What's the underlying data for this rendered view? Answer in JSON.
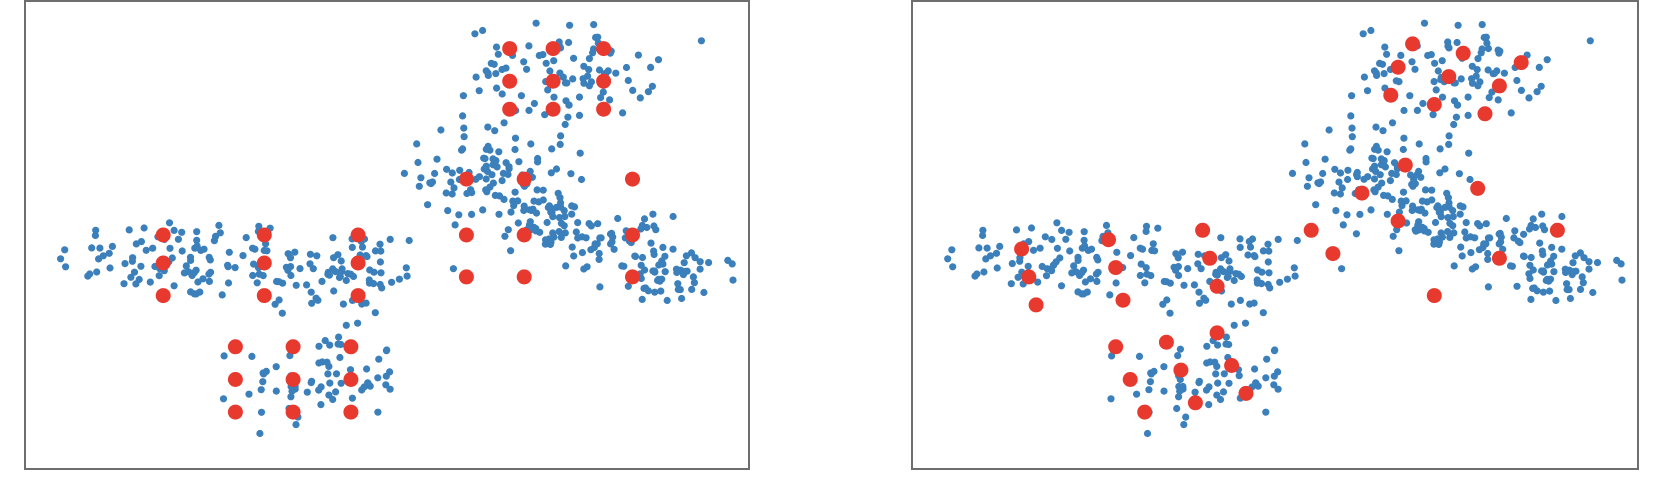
{
  "colors": {
    "points": "#3b7fbb",
    "centers": "#e8392f",
    "frame": "#6e6e6e"
  },
  "chart_data": [
    {
      "type": "scatter",
      "title": "",
      "xlabel": "",
      "ylabel": "",
      "xlim": [
        0,
        1
      ],
      "ylim": [
        0,
        1
      ],
      "grid": false,
      "legend": "none",
      "ticks": false,
      "clusters": [
        {
          "cx": 0.21,
          "cy": 0.45,
          "sx": 0.085,
          "sy": 0.045,
          "n": 95
        },
        {
          "cx": 0.43,
          "cy": 0.42,
          "sx": 0.07,
          "sy": 0.05,
          "n": 80
        },
        {
          "cx": 0.41,
          "cy": 0.19,
          "sx": 0.055,
          "sy": 0.05,
          "n": 70
        },
        {
          "cx": 0.65,
          "cy": 0.63,
          "sx": 0.05,
          "sy": 0.055,
          "n": 110
        },
        {
          "cx": 0.72,
          "cy": 0.52,
          "sx": 0.03,
          "sy": 0.03,
          "n": 45
        },
        {
          "cx": 0.81,
          "cy": 0.49,
          "sx": 0.04,
          "sy": 0.025,
          "n": 45
        },
        {
          "cx": 0.9,
          "cy": 0.41,
          "sx": 0.045,
          "sy": 0.03,
          "n": 55
        },
        {
          "cx": 0.74,
          "cy": 0.85,
          "sx": 0.065,
          "sy": 0.05,
          "n": 95
        }
      ],
      "centers": [
        {
          "x": 0.19,
          "y": 0.5
        },
        {
          "x": 0.19,
          "y": 0.44
        },
        {
          "x": 0.19,
          "y": 0.37
        },
        {
          "x": 0.33,
          "y": 0.5
        },
        {
          "x": 0.33,
          "y": 0.44
        },
        {
          "x": 0.33,
          "y": 0.37
        },
        {
          "x": 0.46,
          "y": 0.5
        },
        {
          "x": 0.46,
          "y": 0.44
        },
        {
          "x": 0.46,
          "y": 0.37
        },
        {
          "x": 0.29,
          "y": 0.26
        },
        {
          "x": 0.29,
          "y": 0.19
        },
        {
          "x": 0.29,
          "y": 0.12
        },
        {
          "x": 0.37,
          "y": 0.26
        },
        {
          "x": 0.37,
          "y": 0.19
        },
        {
          "x": 0.37,
          "y": 0.12
        },
        {
          "x": 0.45,
          "y": 0.26
        },
        {
          "x": 0.45,
          "y": 0.19
        },
        {
          "x": 0.45,
          "y": 0.12
        },
        {
          "x": 0.61,
          "y": 0.62
        },
        {
          "x": 0.61,
          "y": 0.5
        },
        {
          "x": 0.61,
          "y": 0.41
        },
        {
          "x": 0.69,
          "y": 0.62
        },
        {
          "x": 0.69,
          "y": 0.5
        },
        {
          "x": 0.69,
          "y": 0.41
        },
        {
          "x": 0.84,
          "y": 0.62
        },
        {
          "x": 0.84,
          "y": 0.5
        },
        {
          "x": 0.84,
          "y": 0.41
        },
        {
          "x": 0.67,
          "y": 0.9
        },
        {
          "x": 0.67,
          "y": 0.83
        },
        {
          "x": 0.67,
          "y": 0.77
        },
        {
          "x": 0.73,
          "y": 0.9
        },
        {
          "x": 0.73,
          "y": 0.83
        },
        {
          "x": 0.73,
          "y": 0.77
        },
        {
          "x": 0.8,
          "y": 0.9
        },
        {
          "x": 0.8,
          "y": 0.83
        },
        {
          "x": 0.8,
          "y": 0.77
        }
      ]
    },
    {
      "type": "scatter",
      "title": "",
      "xlabel": "",
      "ylabel": "",
      "xlim": [
        0,
        1
      ],
      "ylim": [
        0,
        1
      ],
      "grid": false,
      "legend": "none",
      "ticks": false,
      "clusters": [
        {
          "cx": 0.21,
          "cy": 0.45,
          "sx": 0.085,
          "sy": 0.045,
          "n": 95
        },
        {
          "cx": 0.43,
          "cy": 0.42,
          "sx": 0.07,
          "sy": 0.05,
          "n": 80
        },
        {
          "cx": 0.41,
          "cy": 0.19,
          "sx": 0.055,
          "sy": 0.05,
          "n": 70
        },
        {
          "cx": 0.65,
          "cy": 0.63,
          "sx": 0.05,
          "sy": 0.055,
          "n": 110
        },
        {
          "cx": 0.72,
          "cy": 0.52,
          "sx": 0.03,
          "sy": 0.03,
          "n": 45
        },
        {
          "cx": 0.81,
          "cy": 0.49,
          "sx": 0.04,
          "sy": 0.025,
          "n": 45
        },
        {
          "cx": 0.9,
          "cy": 0.41,
          "sx": 0.045,
          "sy": 0.03,
          "n": 55
        },
        {
          "cx": 0.74,
          "cy": 0.85,
          "sx": 0.065,
          "sy": 0.05,
          "n": 95
        }
      ],
      "centers": [
        {
          "x": 0.15,
          "y": 0.47
        },
        {
          "x": 0.16,
          "y": 0.41
        },
        {
          "x": 0.17,
          "y": 0.35
        },
        {
          "x": 0.27,
          "y": 0.49
        },
        {
          "x": 0.28,
          "y": 0.43
        },
        {
          "x": 0.29,
          "y": 0.36
        },
        {
          "x": 0.4,
          "y": 0.51
        },
        {
          "x": 0.41,
          "y": 0.45
        },
        {
          "x": 0.42,
          "y": 0.39
        },
        {
          "x": 0.28,
          "y": 0.26
        },
        {
          "x": 0.3,
          "y": 0.19
        },
        {
          "x": 0.32,
          "y": 0.12
        },
        {
          "x": 0.35,
          "y": 0.27
        },
        {
          "x": 0.37,
          "y": 0.21
        },
        {
          "x": 0.39,
          "y": 0.14
        },
        {
          "x": 0.42,
          "y": 0.29
        },
        {
          "x": 0.44,
          "y": 0.22
        },
        {
          "x": 0.46,
          "y": 0.16
        },
        {
          "x": 0.55,
          "y": 0.51
        },
        {
          "x": 0.58,
          "y": 0.46
        },
        {
          "x": 0.62,
          "y": 0.59
        },
        {
          "x": 0.67,
          "y": 0.53
        },
        {
          "x": 0.68,
          "y": 0.65
        },
        {
          "x": 0.72,
          "y": 0.37
        },
        {
          "x": 0.78,
          "y": 0.6
        },
        {
          "x": 0.81,
          "y": 0.45
        },
        {
          "x": 0.89,
          "y": 0.51
        },
        {
          "x": 0.66,
          "y": 0.8
        },
        {
          "x": 0.67,
          "y": 0.86
        },
        {
          "x": 0.69,
          "y": 0.91
        },
        {
          "x": 0.72,
          "y": 0.78
        },
        {
          "x": 0.74,
          "y": 0.84
        },
        {
          "x": 0.76,
          "y": 0.89
        },
        {
          "x": 0.79,
          "y": 0.76
        },
        {
          "x": 0.81,
          "y": 0.82
        },
        {
          "x": 0.84,
          "y": 0.87
        }
      ]
    }
  ]
}
